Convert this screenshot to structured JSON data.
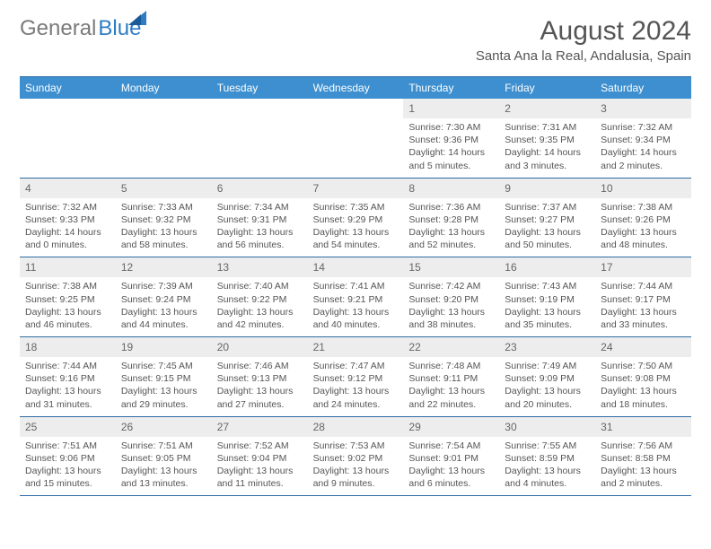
{
  "brand": {
    "part1": "General",
    "part2": "Blue"
  },
  "title": "August 2024",
  "location": "Santa Ana la Real, Andalusia, Spain",
  "colors": {
    "header_bg": "#3d8fcf",
    "border": "#2e6da4",
    "daynum_bg": "#ededed",
    "text": "#555555",
    "brand_blue": "#2e7cc2",
    "brand_gray": "#7a7a7a",
    "white": "#ffffff"
  },
  "day_names": [
    "Sunday",
    "Monday",
    "Tuesday",
    "Wednesday",
    "Thursday",
    "Friday",
    "Saturday"
  ],
  "weeks": [
    [
      {
        "empty": true
      },
      {
        "empty": true
      },
      {
        "empty": true
      },
      {
        "empty": true
      },
      {
        "n": "1",
        "sr": "7:30 AM",
        "ss": "9:36 PM",
        "dl": "14 hours and 5 minutes."
      },
      {
        "n": "2",
        "sr": "7:31 AM",
        "ss": "9:35 PM",
        "dl": "14 hours and 3 minutes."
      },
      {
        "n": "3",
        "sr": "7:32 AM",
        "ss": "9:34 PM",
        "dl": "14 hours and 2 minutes."
      }
    ],
    [
      {
        "n": "4",
        "sr": "7:32 AM",
        "ss": "9:33 PM",
        "dl": "14 hours and 0 minutes."
      },
      {
        "n": "5",
        "sr": "7:33 AM",
        "ss": "9:32 PM",
        "dl": "13 hours and 58 minutes."
      },
      {
        "n": "6",
        "sr": "7:34 AM",
        "ss": "9:31 PM",
        "dl": "13 hours and 56 minutes."
      },
      {
        "n": "7",
        "sr": "7:35 AM",
        "ss": "9:29 PM",
        "dl": "13 hours and 54 minutes."
      },
      {
        "n": "8",
        "sr": "7:36 AM",
        "ss": "9:28 PM",
        "dl": "13 hours and 52 minutes."
      },
      {
        "n": "9",
        "sr": "7:37 AM",
        "ss": "9:27 PM",
        "dl": "13 hours and 50 minutes."
      },
      {
        "n": "10",
        "sr": "7:38 AM",
        "ss": "9:26 PM",
        "dl": "13 hours and 48 minutes."
      }
    ],
    [
      {
        "n": "11",
        "sr": "7:38 AM",
        "ss": "9:25 PM",
        "dl": "13 hours and 46 minutes."
      },
      {
        "n": "12",
        "sr": "7:39 AM",
        "ss": "9:24 PM",
        "dl": "13 hours and 44 minutes."
      },
      {
        "n": "13",
        "sr": "7:40 AM",
        "ss": "9:22 PM",
        "dl": "13 hours and 42 minutes."
      },
      {
        "n": "14",
        "sr": "7:41 AM",
        "ss": "9:21 PM",
        "dl": "13 hours and 40 minutes."
      },
      {
        "n": "15",
        "sr": "7:42 AM",
        "ss": "9:20 PM",
        "dl": "13 hours and 38 minutes."
      },
      {
        "n": "16",
        "sr": "7:43 AM",
        "ss": "9:19 PM",
        "dl": "13 hours and 35 minutes."
      },
      {
        "n": "17",
        "sr": "7:44 AM",
        "ss": "9:17 PM",
        "dl": "13 hours and 33 minutes."
      }
    ],
    [
      {
        "n": "18",
        "sr": "7:44 AM",
        "ss": "9:16 PM",
        "dl": "13 hours and 31 minutes."
      },
      {
        "n": "19",
        "sr": "7:45 AM",
        "ss": "9:15 PM",
        "dl": "13 hours and 29 minutes."
      },
      {
        "n": "20",
        "sr": "7:46 AM",
        "ss": "9:13 PM",
        "dl": "13 hours and 27 minutes."
      },
      {
        "n": "21",
        "sr": "7:47 AM",
        "ss": "9:12 PM",
        "dl": "13 hours and 24 minutes."
      },
      {
        "n": "22",
        "sr": "7:48 AM",
        "ss": "9:11 PM",
        "dl": "13 hours and 22 minutes."
      },
      {
        "n": "23",
        "sr": "7:49 AM",
        "ss": "9:09 PM",
        "dl": "13 hours and 20 minutes."
      },
      {
        "n": "24",
        "sr": "7:50 AM",
        "ss": "9:08 PM",
        "dl": "13 hours and 18 minutes."
      }
    ],
    [
      {
        "n": "25",
        "sr": "7:51 AM",
        "ss": "9:06 PM",
        "dl": "13 hours and 15 minutes."
      },
      {
        "n": "26",
        "sr": "7:51 AM",
        "ss": "9:05 PM",
        "dl": "13 hours and 13 minutes."
      },
      {
        "n": "27",
        "sr": "7:52 AM",
        "ss": "9:04 PM",
        "dl": "13 hours and 11 minutes."
      },
      {
        "n": "28",
        "sr": "7:53 AM",
        "ss": "9:02 PM",
        "dl": "13 hours and 9 minutes."
      },
      {
        "n": "29",
        "sr": "7:54 AM",
        "ss": "9:01 PM",
        "dl": "13 hours and 6 minutes."
      },
      {
        "n": "30",
        "sr": "7:55 AM",
        "ss": "8:59 PM",
        "dl": "13 hours and 4 minutes."
      },
      {
        "n": "31",
        "sr": "7:56 AM",
        "ss": "8:58 PM",
        "dl": "13 hours and 2 minutes."
      }
    ]
  ],
  "labels": {
    "sunrise": "Sunrise: ",
    "sunset": "Sunset: ",
    "daylight": "Daylight: "
  }
}
